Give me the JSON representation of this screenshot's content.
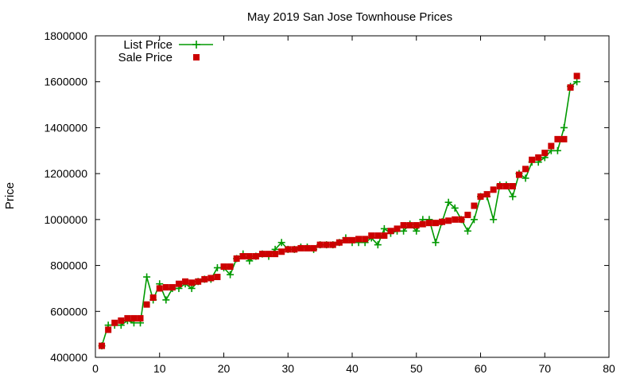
{
  "chart_data": {
    "type": "scatter",
    "title": "May 2019 San Jose Townhouse Prices",
    "xlabel": "",
    "ylabel": "Price",
    "xlim": [
      0,
      80
    ],
    "ylim": [
      400000,
      1800000
    ],
    "xticks": [
      0,
      10,
      20,
      30,
      40,
      50,
      60,
      70,
      80
    ],
    "yticks": [
      400000,
      600000,
      800000,
      1000000,
      1200000,
      1400000,
      1600000,
      1800000
    ],
    "xtick_labels": [
      "0",
      "10",
      "20",
      "30",
      "40",
      "50",
      "60",
      "70",
      "80"
    ],
    "ytick_labels": [
      "400000",
      "600000",
      "800000",
      "1000000",
      "1200000",
      "1400000",
      "1600000",
      "1800000"
    ],
    "grid": false,
    "legend_position": "top-left",
    "x": [
      1,
      2,
      3,
      4,
      5,
      6,
      7,
      8,
      9,
      10,
      11,
      12,
      13,
      14,
      15,
      16,
      17,
      18,
      19,
      20,
      21,
      22,
      23,
      24,
      25,
      26,
      27,
      28,
      29,
      30,
      31,
      32,
      33,
      34,
      35,
      36,
      37,
      38,
      39,
      40,
      41,
      42,
      43,
      44,
      45,
      46,
      47,
      48,
      49,
      50,
      51,
      52,
      53,
      54,
      55,
      56,
      57,
      58,
      59,
      60,
      61,
      62,
      63,
      64,
      65,
      66,
      67,
      68,
      69,
      70,
      71,
      72,
      73,
      74,
      75
    ],
    "series": [
      {
        "name": "List Price",
        "style": "line-plus",
        "color": "#009900",
        "values": [
          450000,
          540000,
          540000,
          540000,
          560000,
          550000,
          550000,
          750000,
          650000,
          720000,
          650000,
          700000,
          700000,
          720000,
          700000,
          730000,
          740000,
          740000,
          790000,
          790000,
          760000,
          830000,
          850000,
          820000,
          840000,
          850000,
          840000,
          870000,
          900000,
          870000,
          870000,
          880000,
          880000,
          870000,
          890000,
          890000,
          890000,
          900000,
          920000,
          900000,
          900000,
          900000,
          920000,
          890000,
          960000,
          940000,
          950000,
          950000,
          980000,
          950000,
          1000000,
          1000000,
          900000,
          990000,
          1075000,
          1050000,
          1000000,
          950000,
          1000000,
          1100000,
          1100000,
          1000000,
          1150000,
          1150000,
          1100000,
          1200000,
          1180000,
          1250000,
          1250000,
          1270000,
          1300000,
          1300000,
          1400000,
          1580000,
          1600000
        ]
      },
      {
        "name": "Sale Price",
        "style": "points-square",
        "color": "#cc0000",
        "values": [
          450000,
          520000,
          550000,
          560000,
          570000,
          570000,
          570000,
          630000,
          660000,
          700000,
          705000,
          705000,
          720000,
          730000,
          725000,
          730000,
          740000,
          745000,
          750000,
          795000,
          795000,
          830000,
          840000,
          840000,
          840000,
          850000,
          850000,
          850000,
          860000,
          870000,
          870000,
          875000,
          875000,
          875000,
          890000,
          890000,
          890000,
          900000,
          910000,
          910000,
          915000,
          915000,
          930000,
          930000,
          930000,
          950000,
          960000,
          975000,
          975000,
          975000,
          980000,
          985000,
          985000,
          990000,
          995000,
          1000000,
          1000000,
          1020000,
          1060000,
          1100000,
          1110000,
          1130000,
          1145000,
          1145000,
          1145000,
          1195000,
          1220000,
          1260000,
          1270000,
          1290000,
          1320000,
          1350000,
          1350000,
          1575000,
          1625000
        ]
      }
    ]
  }
}
